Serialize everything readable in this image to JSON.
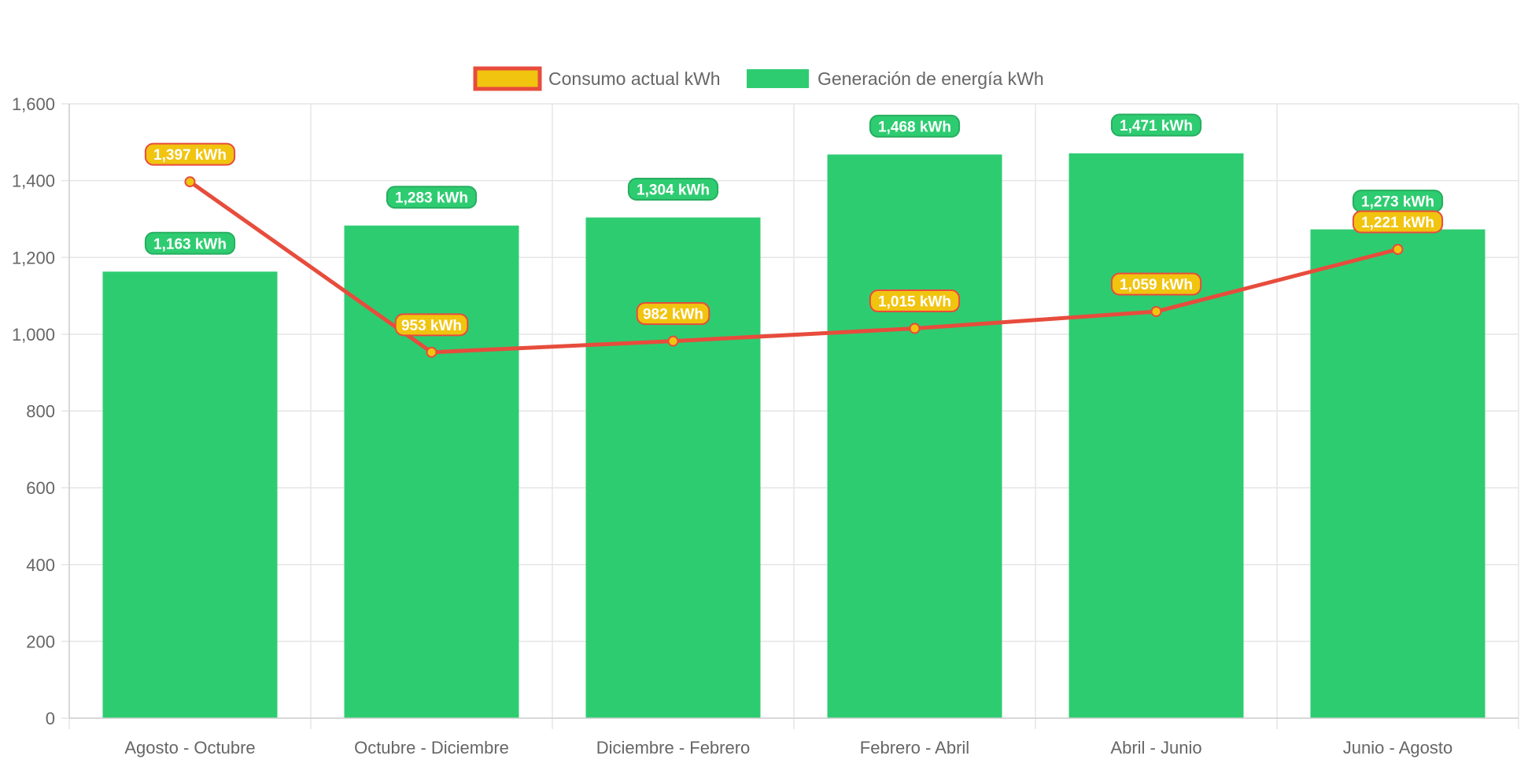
{
  "colors": {
    "bar": "#2ecc71",
    "bar_label_border": "#27ae60",
    "line": "#e74c3c",
    "point_fill": "#f1c40f",
    "grid": "#e5e5e5",
    "axis_text": "#666666"
  },
  "chart_data": {
    "type": "bar",
    "categories": [
      "Agosto - Octubre",
      "Octubre - Diciembre",
      "Diciembre - Febrero",
      "Febrero - Abril",
      "Abril - Junio",
      "Junio - Agosto"
    ],
    "series": [
      {
        "name": "Consumo actual kWh",
        "type": "line",
        "values": [
          1397,
          953,
          982,
          1015,
          1059,
          1221
        ],
        "labels": [
          "1,397 kWh",
          "953 kWh",
          "982 kWh",
          "1,015 kWh",
          "1,059 kWh",
          "1,221 kWh"
        ]
      },
      {
        "name": "Generación de energía kWh",
        "type": "bar",
        "values": [
          1163,
          1283,
          1304,
          1468,
          1471,
          1273
        ],
        "labels": [
          "1,163 kWh",
          "1,283 kWh",
          "1,304 kWh",
          "1,468 kWh",
          "1,471 kWh",
          "1,273 kWh"
        ]
      }
    ],
    "ylim": [
      0,
      1600
    ],
    "yticks": [
      0,
      200,
      400,
      600,
      800,
      1000,
      1200,
      1400,
      1600
    ],
    "ytick_labels": [
      "0",
      "200",
      "400",
      "600",
      "800",
      "1,000",
      "1,200",
      "1,400",
      "1,600"
    ],
    "grid": true,
    "legend_position": "top-center"
  }
}
